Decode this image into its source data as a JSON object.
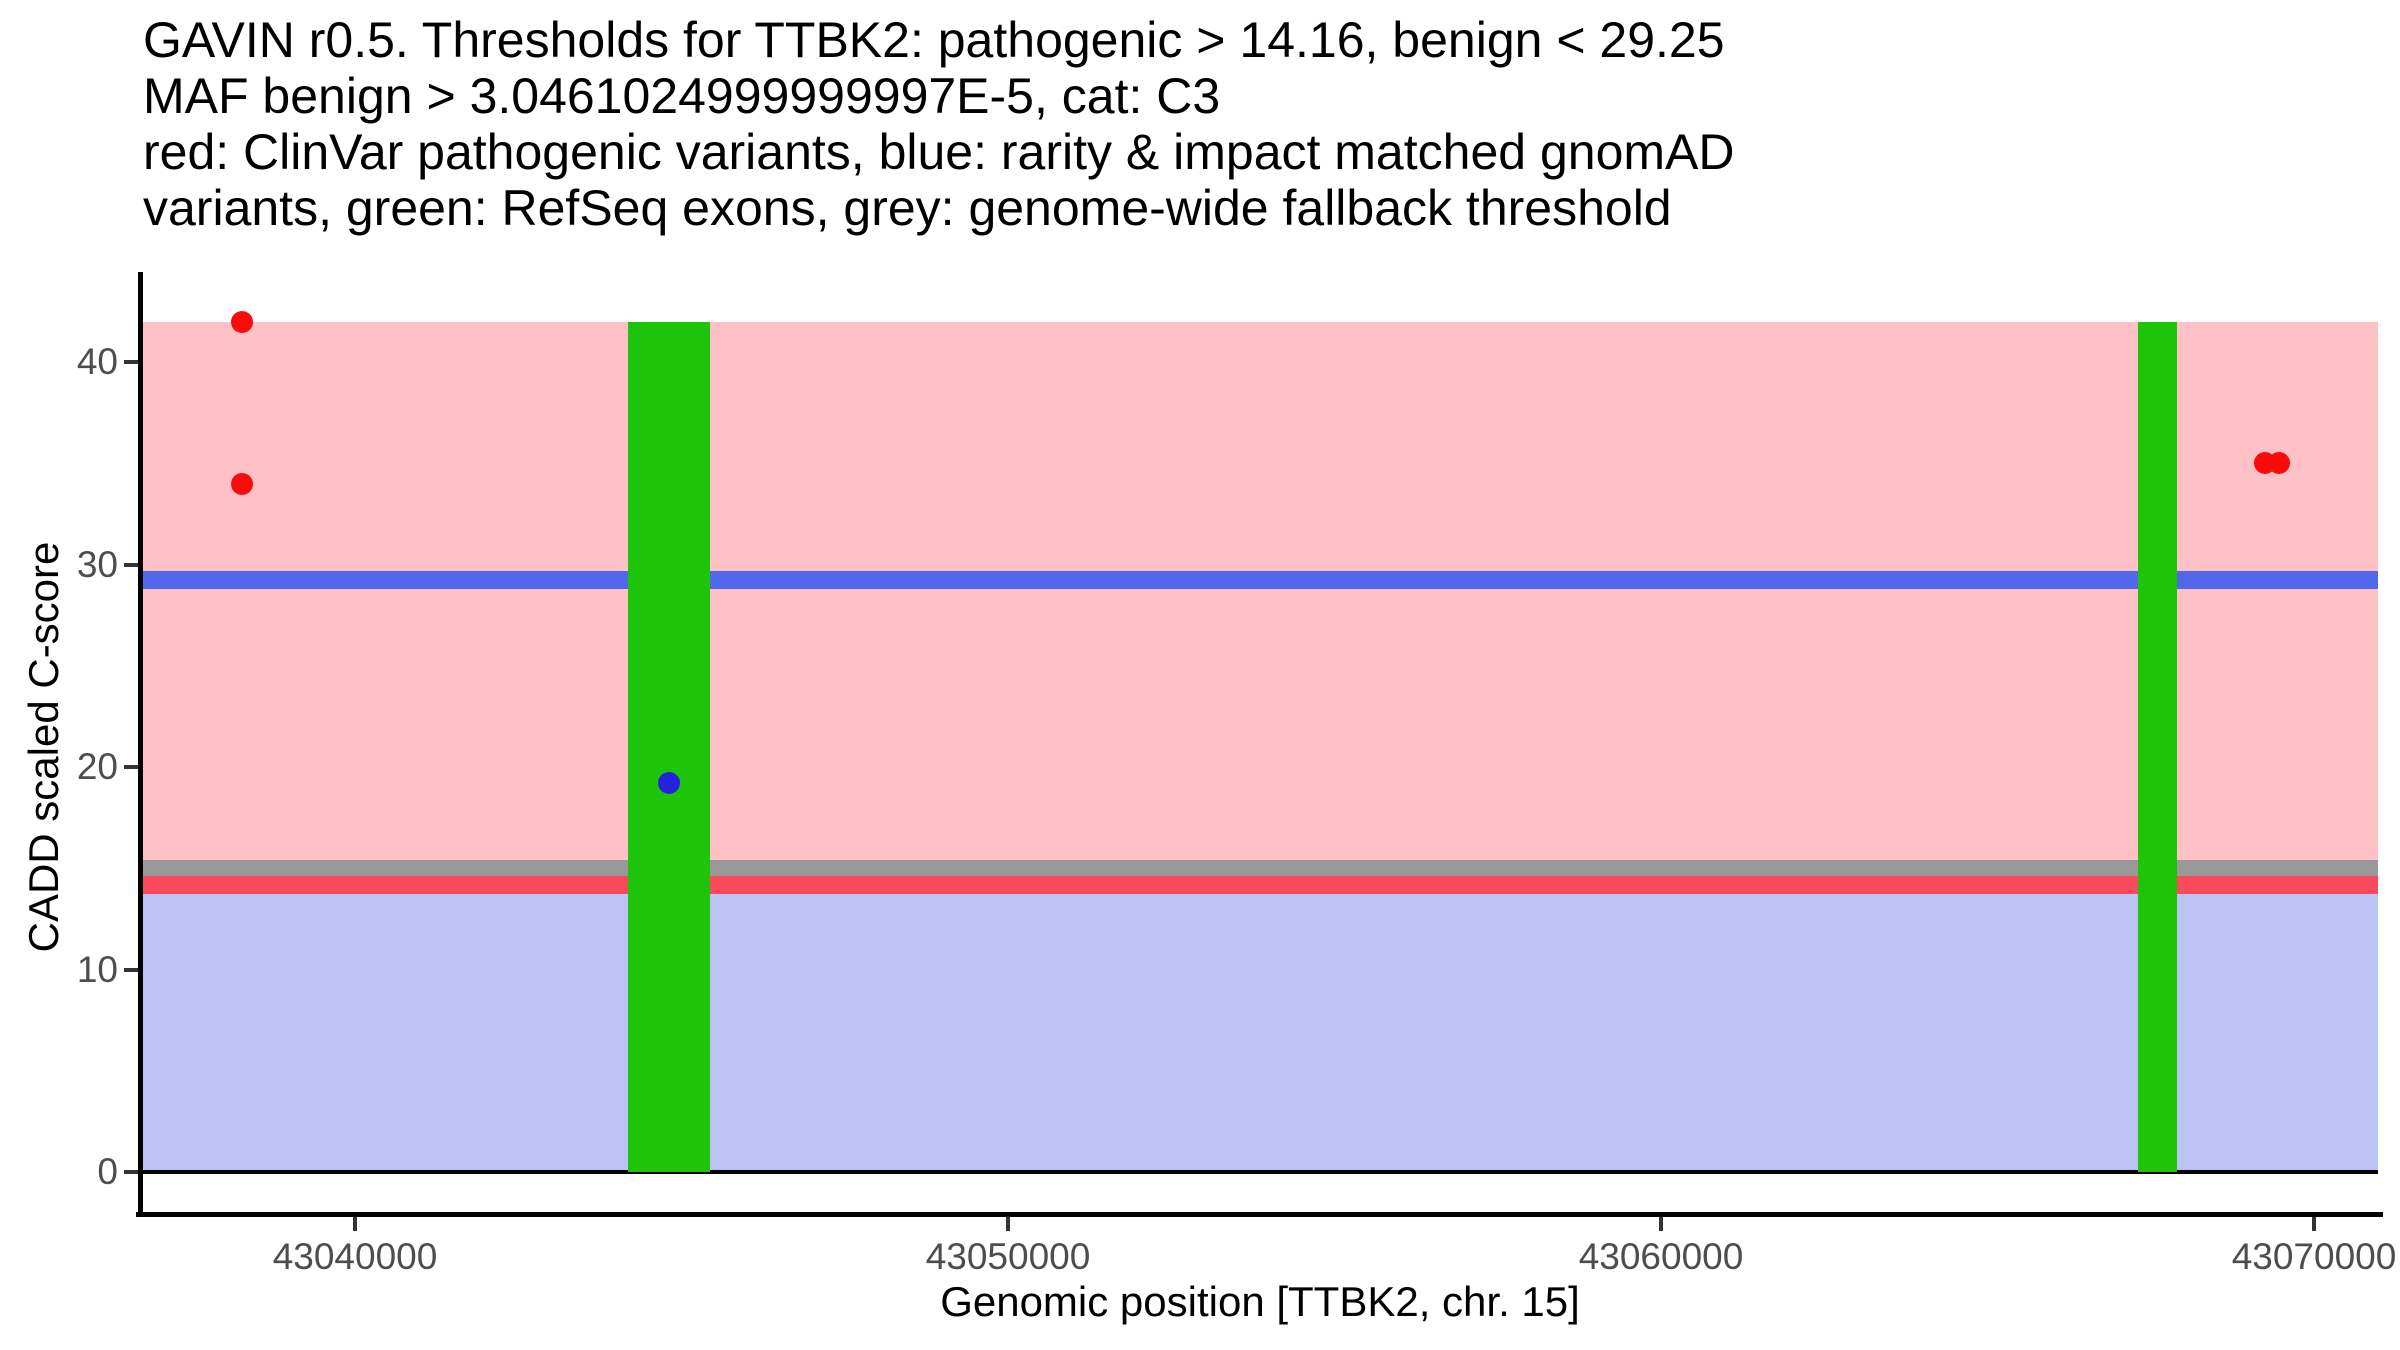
{
  "title": {
    "lines": [
      "GAVIN r0.5. Thresholds for TTBK2: pathogenic > 14.16, benign < 29.25",
      "MAF benign > 3.0461024999999997E-5, cat: C3",
      "red: ClinVar pathogenic variants, blue: rarity & impact matched gnomAD",
      "variants, green: RefSeq exons, grey: genome-wide fallback threshold"
    ]
  },
  "axes": {
    "x": {
      "label": "Genomic position [TTBK2, chr. 15]"
    },
    "y": {
      "label": "CADD scaled C-score"
    }
  },
  "chart_data": {
    "type": "scatter",
    "title": "GAVIN r0.5. Thresholds for TTBK2: pathogenic > 14.16, benign < 29.25 MAF benign > 3.0461024999999997E-5, cat: C3",
    "xlabel": "Genomic position [TTBK2, chr. 15]",
    "ylabel": "CADD scaled C-score",
    "xlim": [
      43036700,
      43071000
    ],
    "ylim": [
      -2.1,
      44.1
    ],
    "x_ticks": [
      43040000,
      43050000,
      43060000,
      43070000
    ],
    "y_ticks": [
      0,
      10,
      20,
      30,
      40
    ],
    "grid": false,
    "legend": "none (legend described in title text)",
    "series": [
      {
        "name": "ClinVar pathogenic variants",
        "color": "#fa0a0a",
        "points": [
          {
            "x": 43038270,
            "y": 42
          },
          {
            "x": 43038270,
            "y": 34
          },
          {
            "x": 43069250,
            "y": 35
          },
          {
            "x": 43069460,
            "y": 35
          }
        ]
      },
      {
        "name": "rarity & impact matched gnomAD variants",
        "color": "#2323de",
        "points": [
          {
            "x": 43044810,
            "y": 19.2
          }
        ]
      }
    ],
    "regions": [
      {
        "name": "pathogenic-region",
        "color": "#ffc0c6",
        "ymin": 14.16,
        "ymax": 42
      },
      {
        "name": "benign-region",
        "color": "#bdc2f5",
        "ymin": 0,
        "ymax": 14.16
      }
    ],
    "exons": {
      "name": "RefSeq exons",
      "color": "#1ec40a",
      "ymin": 0,
      "ymax": 42,
      "intervals": [
        {
          "xmin": 43044180,
          "xmax": 43045440
        },
        {
          "xmin": 43067300,
          "xmax": 43067900
        }
      ]
    },
    "hlines": [
      {
        "name": "benign-threshold-line",
        "y": 29.25,
        "color": "#5168ed",
        "thickness": 0.9
      },
      {
        "name": "genome-wide-fallback-threshold-line",
        "y": 15,
        "color": "#999999",
        "thickness": 0.8
      },
      {
        "name": "pathogenic-threshold-line",
        "y": 14.16,
        "color": "#f9495b",
        "thickness": 0.9
      },
      {
        "name": "zero-baseline",
        "y": 0,
        "color": "#000000",
        "thickness": 0.2
      }
    ]
  }
}
